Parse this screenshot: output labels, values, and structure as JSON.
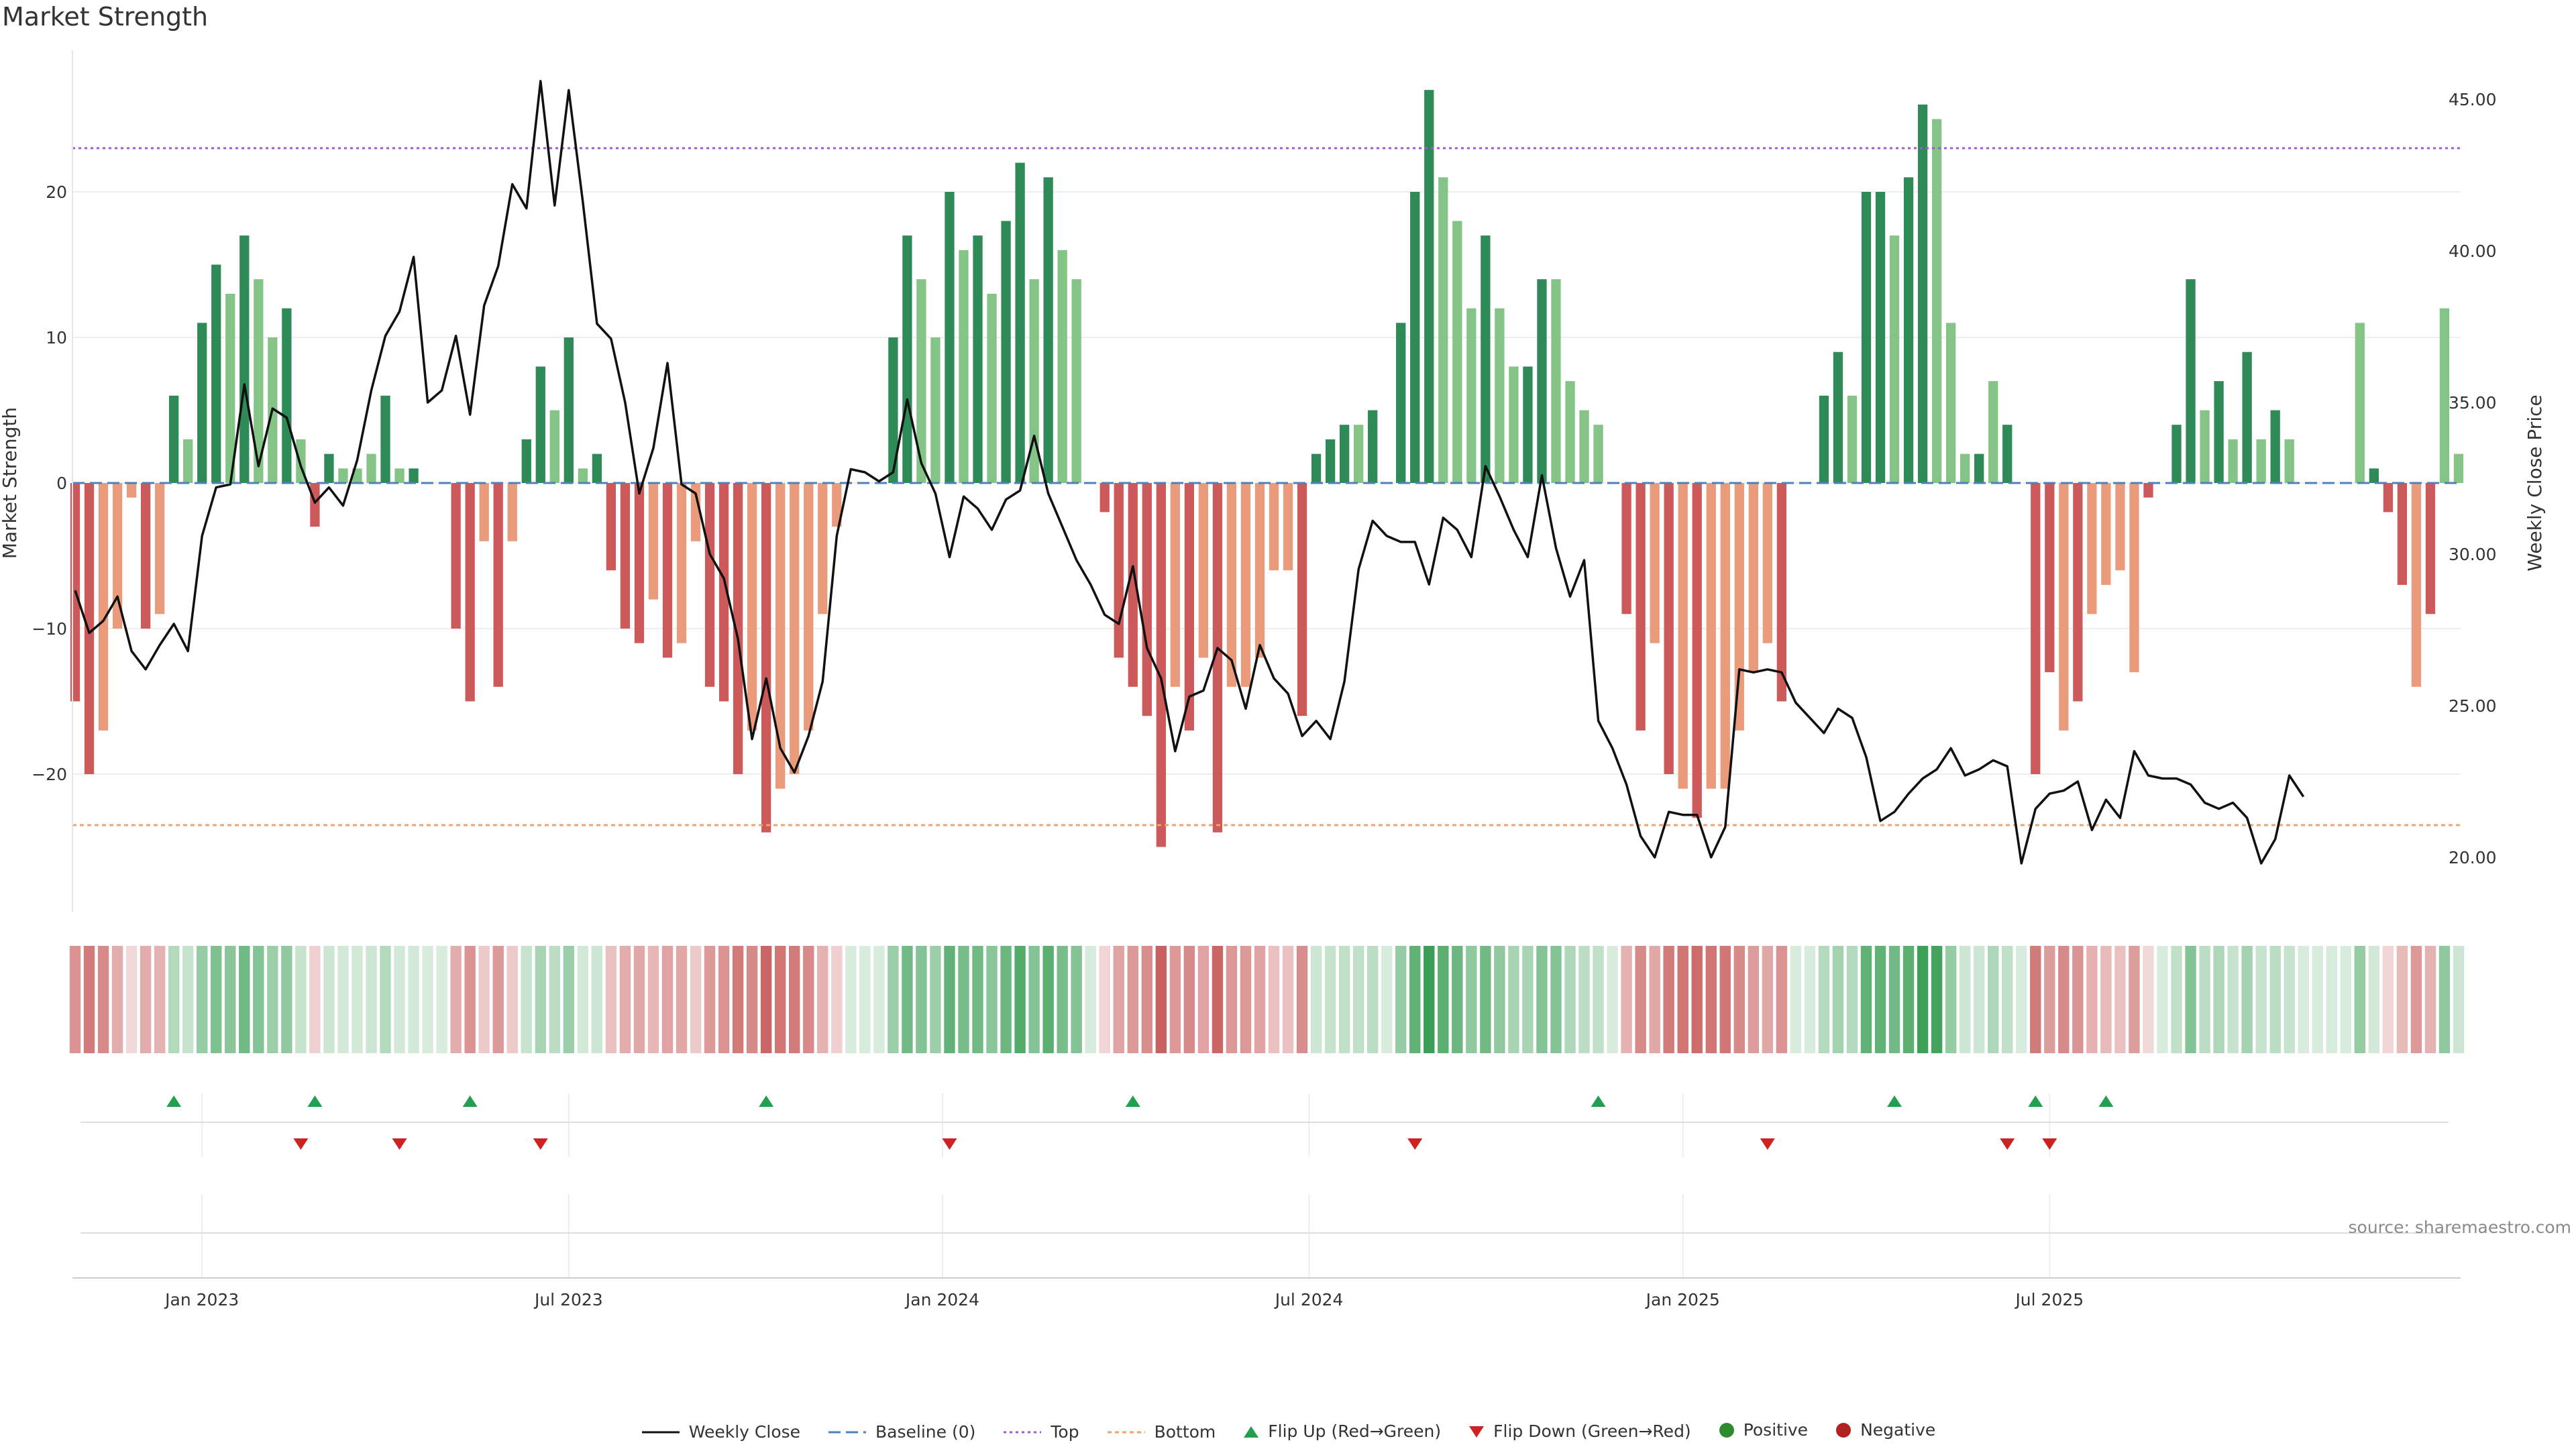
{
  "title": "Market Strength",
  "source": "source: sharemaestro.com",
  "colors": {
    "strong_pos": "#2e8a57",
    "weak_pos": "#84c487",
    "strong_neg": "#cd5a5a",
    "weak_neg": "#ea9b7c",
    "price_line": "#111111",
    "baseline": "#4f81b8",
    "top": "#a15ad6",
    "bottom": "#eea36f",
    "flip_up": "#22a050",
    "flip_down": "#cc2222",
    "positive": "#2e8b2e",
    "negative": "#b22222"
  },
  "legend": [
    {
      "key": "line",
      "label": "Weekly Close",
      "color": "#111111"
    },
    {
      "key": "baseline",
      "label": "Baseline (0)",
      "color": "#4f81b8"
    },
    {
      "key": "top",
      "label": "Top",
      "color": "#a15ad6"
    },
    {
      "key": "bottom",
      "label": "Bottom",
      "color": "#eea36f"
    },
    {
      "key": "flip_up",
      "label": "Flip Up (Red→Green)",
      "color": "#22a050"
    },
    {
      "key": "flip_down",
      "label": "Flip Down (Green→Red)",
      "color": "#cc2222"
    },
    {
      "key": "positive",
      "label": "Positive",
      "color": "#2e8b2e"
    },
    {
      "key": "negative",
      "label": "Negative",
      "color": "#b22222"
    }
  ],
  "chart_data": {
    "type": "bar",
    "title": "Market Strength",
    "ylabel": "Market Strength",
    "y2label": "Weekly Close Price",
    "ylim": [
      -29,
      28
    ],
    "y2lim": [
      18.3,
      46.4
    ],
    "yticks": [
      -20,
      -10,
      0,
      10,
      20
    ],
    "y2ticks": [
      "20.00",
      "25.00",
      "30.00",
      "35.00",
      "40.00",
      "45.00"
    ],
    "xticks": [
      {
        "label": "Jan 2023",
        "week": 9
      },
      {
        "label": "Jul 2023",
        "week": 35
      },
      {
        "label": "Jan 2024",
        "week": 61.5
      },
      {
        "label": "Jul 2024",
        "week": 87.5
      },
      {
        "label": "Jan 2025",
        "week": 114
      },
      {
        "label": "Jul 2025",
        "week": 140
      }
    ],
    "top_line": 23.0,
    "bottom_line": -23.5,
    "baseline": 0,
    "strength": [
      -15,
      -20,
      -17,
      -10,
      -1,
      -10,
      -9,
      6,
      3,
      11,
      15,
      13,
      17,
      14,
      10,
      12,
      3,
      -3,
      2,
      1,
      1,
      2,
      6,
      1,
      1,
      0,
      0,
      -10,
      -15,
      -4,
      -14,
      -4,
      3,
      8,
      5,
      10,
      1,
      2,
      -6,
      -10,
      -11,
      -8,
      -12,
      -11,
      -4,
      -14,
      -15,
      -20,
      -17,
      -24,
      -21,
      -20,
      -17,
      -9,
      -3,
      0,
      0,
      0,
      10,
      17,
      14,
      10,
      20,
      16,
      17,
      13,
      18,
      22,
      14,
      21,
      16,
      14,
      0,
      -2,
      -12,
      -14,
      -16,
      -25,
      -14,
      -17,
      -12,
      -24,
      -14,
      -14,
      -12,
      -6,
      -6,
      -16,
      2,
      3,
      4,
      4,
      5,
      0,
      11,
      20,
      27,
      21,
      18,
      12,
      17,
      12,
      8,
      8,
      14,
      14,
      7,
      5,
      4,
      0,
      -9,
      -17,
      -11,
      -20,
      -21,
      -23,
      -21,
      -21,
      -17,
      -13,
      -11,
      -15,
      0,
      0,
      6,
      9,
      6,
      20,
      20,
      17,
      21,
      26,
      25,
      11,
      2,
      2,
      7,
      4,
      0,
      -20,
      -13,
      -17,
      -15,
      -9,
      -7,
      -6,
      -13,
      -1,
      0,
      4,
      14,
      5,
      7,
      3,
      9,
      3,
      5,
      3,
      0,
      0,
      0,
      0,
      11,
      1,
      -2,
      -7,
      -14,
      -9,
      12,
      2
    ],
    "tone": [
      "s",
      "s",
      "w",
      "w",
      "w",
      "s",
      "w",
      "s",
      "w",
      "s",
      "s",
      "w",
      "s",
      "w",
      "w",
      "s",
      "w",
      "s",
      "s",
      "w",
      "w",
      "w",
      "s",
      "w",
      "s",
      "w",
      "w",
      "s",
      "s",
      "w",
      "s",
      "w",
      "s",
      "s",
      "w",
      "s",
      "w",
      "s",
      "s",
      "s",
      "s",
      "w",
      "s",
      "w",
      "w",
      "s",
      "s",
      "s",
      "w",
      "s",
      "w",
      "w",
      "w",
      "w",
      "w",
      "w",
      "w",
      "w",
      "s",
      "s",
      "w",
      "w",
      "s",
      "w",
      "s",
      "w",
      "s",
      "s",
      "w",
      "s",
      "w",
      "w",
      "w",
      "s",
      "s",
      "s",
      "s",
      "s",
      "w",
      "s",
      "w",
      "s",
      "w",
      "w",
      "w",
      "w",
      "w",
      "s",
      "s",
      "s",
      "s",
      "w",
      "s",
      "w",
      "s",
      "s",
      "s",
      "w",
      "w",
      "w",
      "s",
      "w",
      "w",
      "s",
      "s",
      "w",
      "w",
      "w",
      "w",
      "s",
      "s",
      "s",
      "w",
      "s",
      "w",
      "s",
      "w",
      "w",
      "w",
      "w",
      "w",
      "s",
      "w",
      "w",
      "s",
      "s",
      "w",
      "s",
      "s",
      "w",
      "s",
      "s",
      "w",
      "w",
      "w",
      "s",
      "w",
      "s",
      "w",
      "s",
      "s",
      "w",
      "s",
      "w",
      "w",
      "w",
      "w",
      "s",
      "w",
      "s",
      "s",
      "w",
      "s",
      "w",
      "s",
      "w",
      "s",
      "w",
      "w",
      "w",
      "w",
      "s",
      "w",
      "s",
      "s",
      "s",
      "w",
      "s",
      "w"
    ],
    "weekly_close": [
      28.8,
      27.4,
      27.8,
      28.6,
      26.8,
      26.2,
      27.0,
      27.7,
      26.8,
      30.6,
      32.2,
      32.3,
      35.6,
      32.9,
      34.8,
      34.5,
      32.9,
      31.7,
      32.2,
      31.6,
      33.1,
      35.4,
      37.2,
      38.0,
      39.8,
      35.0,
      35.4,
      37.2,
      34.6,
      38.2,
      39.5,
      42.2,
      41.4,
      45.6,
      41.5,
      45.3,
      41.6,
      37.6,
      37.1,
      35.0,
      32.0,
      33.5,
      36.3,
      32.3,
      32.0,
      30.0,
      29.2,
      27.2,
      23.9,
      25.9,
      23.6,
      22.8,
      24.0,
      25.8,
      30.6,
      32.8,
      32.7,
      32.4,
      32.7,
      35.1,
      33.0,
      32.0,
      29.9,
      31.9,
      31.5,
      30.8,
      31.8,
      32.1,
      33.9,
      32.0,
      30.9,
      29.8,
      29.0,
      28.0,
      27.7,
      29.6,
      26.9,
      25.9,
      23.5,
      25.3,
      25.5,
      26.9,
      26.5,
      24.9,
      27.0,
      25.9,
      25.4,
      24.0,
      24.5,
      23.9,
      25.8,
      29.5,
      31.1,
      30.6,
      30.4,
      30.4,
      29.0,
      31.2,
      30.8,
      29.9,
      32.9,
      31.9,
      30.8,
      29.9,
      32.6,
      30.2,
      28.6,
      29.8,
      24.5,
      23.6,
      22.4,
      20.7,
      20.0,
      21.5,
      21.4,
      21.4,
      20.0,
      21.0,
      26.2,
      26.1,
      26.2,
      26.1,
      25.1,
      24.6,
      24.1,
      24.9,
      24.6,
      23.3,
      21.2,
      21.5,
      22.1,
      22.6,
      22.9,
      23.6,
      22.7,
      22.9,
      23.2,
      23.0,
      19.8,
      21.6,
      22.1,
      22.2,
      22.5,
      20.9,
      21.9,
      21.3,
      23.5,
      22.7,
      22.6,
      22.6,
      22.4,
      21.8,
      21.6,
      21.8,
      21.3,
      19.8,
      20.6,
      22.7,
      22.0
    ],
    "flip_up": [
      7,
      17,
      28,
      49,
      75,
      108,
      129,
      139,
      144
    ],
    "flip_down": [
      16,
      23,
      33,
      62,
      95,
      120,
      137,
      140
    ]
  }
}
